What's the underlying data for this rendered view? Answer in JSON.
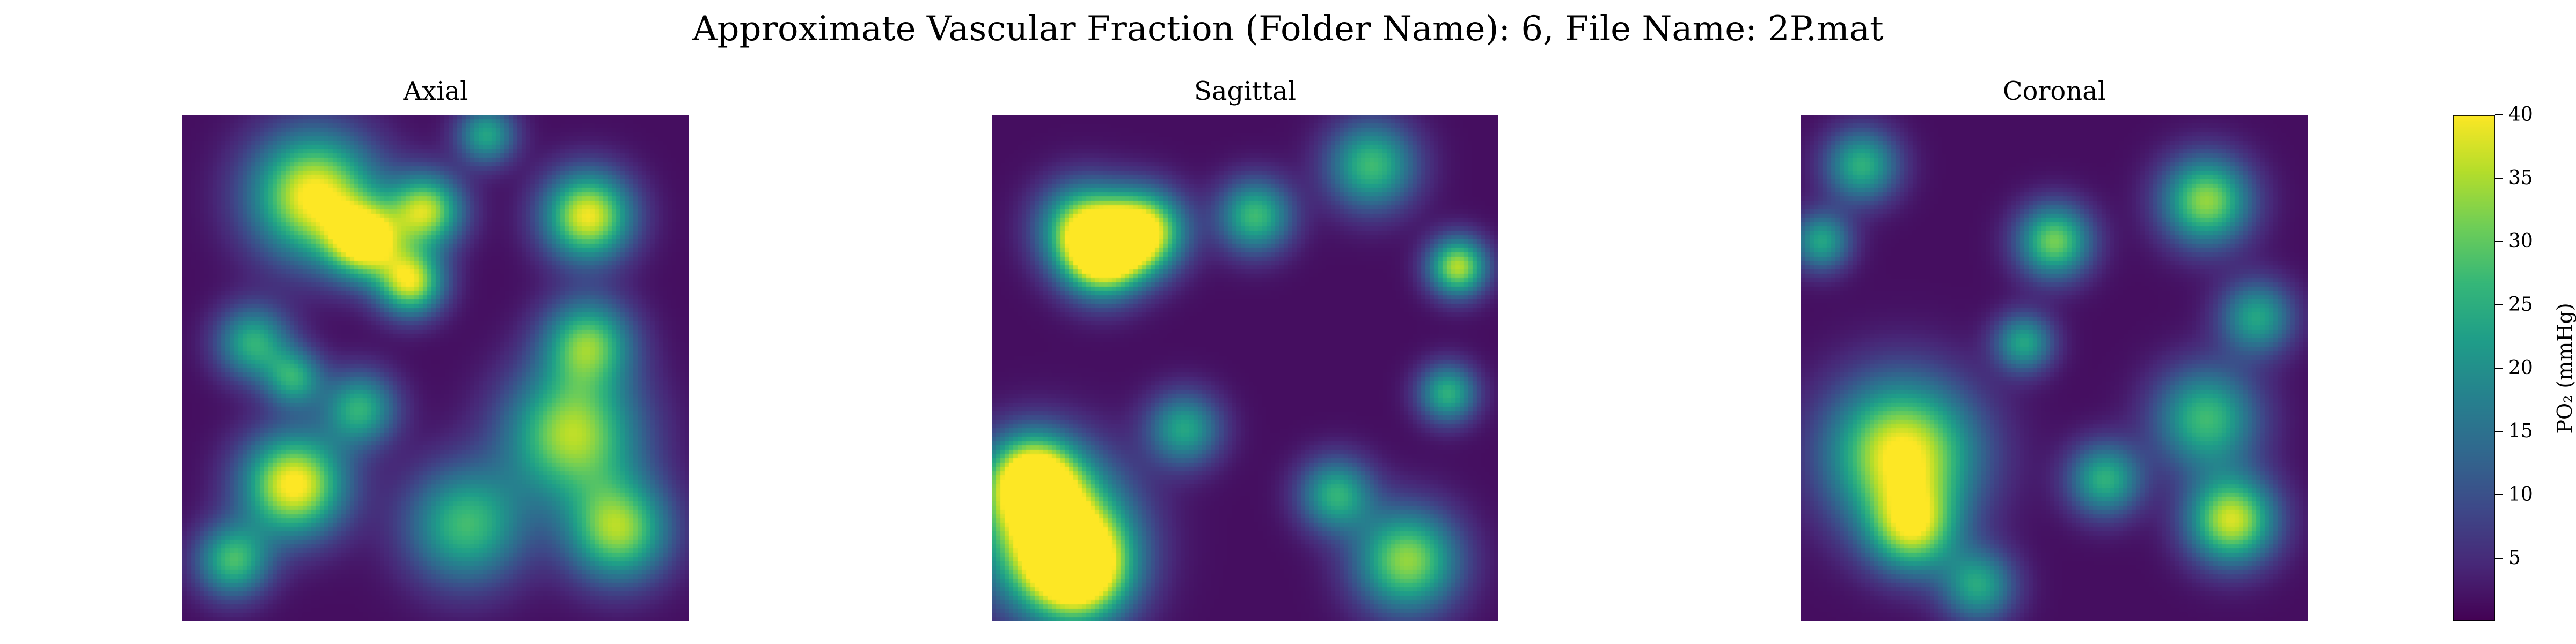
{
  "figure": {
    "title": "Approximate Vascular Fraction (Folder Name): 6, File Name: 2P.mat"
  },
  "chart_data": [
    {
      "type": "heatmap",
      "title": "Axial",
      "xlabel": "",
      "ylabel": "",
      "grid": false,
      "colormap": "viridis",
      "value_range": [
        0,
        40
      ],
      "features": [
        {
          "x": 0.26,
          "y": 0.16,
          "r": 0.085,
          "value": 40
        },
        {
          "x": 0.36,
          "y": 0.25,
          "r": 0.05,
          "value": 38
        },
        {
          "x": 0.45,
          "y": 0.33,
          "r": 0.045,
          "value": 36
        },
        {
          "x": 0.22,
          "y": 0.73,
          "r": 0.07,
          "value": 40
        },
        {
          "x": 0.8,
          "y": 0.2,
          "r": 0.06,
          "value": 38
        },
        {
          "x": 0.48,
          "y": 0.19,
          "r": 0.05,
          "value": 34
        },
        {
          "x": 0.77,
          "y": 0.63,
          "r": 0.09,
          "value": 34
        },
        {
          "x": 0.86,
          "y": 0.82,
          "r": 0.07,
          "value": 32
        },
        {
          "x": 0.8,
          "y": 0.45,
          "r": 0.06,
          "value": 28
        },
        {
          "x": 0.56,
          "y": 0.81,
          "r": 0.08,
          "value": 26
        },
        {
          "x": 0.14,
          "y": 0.45,
          "r": 0.05,
          "value": 24
        },
        {
          "x": 0.35,
          "y": 0.58,
          "r": 0.05,
          "value": 24
        },
        {
          "x": 0.1,
          "y": 0.88,
          "r": 0.05,
          "value": 26
        },
        {
          "x": 0.22,
          "y": 0.52,
          "r": 0.04,
          "value": 22
        },
        {
          "x": 0.6,
          "y": 0.04,
          "r": 0.04,
          "value": 22
        }
      ]
    },
    {
      "type": "heatmap",
      "title": "Sagittal",
      "xlabel": "",
      "ylabel": "",
      "grid": false,
      "colormap": "viridis",
      "value_range": [
        0,
        40
      ],
      "features": [
        {
          "x": 0.12,
          "y": 0.82,
          "r": 0.1,
          "value": 40
        },
        {
          "x": 0.17,
          "y": 0.9,
          "r": 0.07,
          "value": 40
        },
        {
          "x": 0.08,
          "y": 0.72,
          "r": 0.06,
          "value": 38
        },
        {
          "x": 0.22,
          "y": 0.28,
          "r": 0.055,
          "value": 40
        },
        {
          "x": 0.3,
          "y": 0.23,
          "r": 0.055,
          "value": 40
        },
        {
          "x": 0.18,
          "y": 0.22,
          "r": 0.06,
          "value": 30
        },
        {
          "x": 0.82,
          "y": 0.88,
          "r": 0.07,
          "value": 32
        },
        {
          "x": 0.92,
          "y": 0.3,
          "r": 0.04,
          "value": 34
        },
        {
          "x": 0.75,
          "y": 0.1,
          "r": 0.06,
          "value": 26
        },
        {
          "x": 0.52,
          "y": 0.2,
          "r": 0.05,
          "value": 26
        },
        {
          "x": 0.68,
          "y": 0.75,
          "r": 0.05,
          "value": 24
        },
        {
          "x": 0.38,
          "y": 0.62,
          "r": 0.05,
          "value": 22
        },
        {
          "x": 0.9,
          "y": 0.55,
          "r": 0.04,
          "value": 24
        }
      ]
    },
    {
      "type": "heatmap",
      "title": "Coronal",
      "xlabel": "",
      "ylabel": "",
      "grid": false,
      "colormap": "viridis",
      "value_range": [
        0,
        40
      ],
      "features": [
        {
          "x": 0.2,
          "y": 0.67,
          "r": 0.1,
          "value": 40
        },
        {
          "x": 0.22,
          "y": 0.82,
          "r": 0.06,
          "value": 28
        },
        {
          "x": 0.85,
          "y": 0.8,
          "r": 0.06,
          "value": 36
        },
        {
          "x": 0.8,
          "y": 0.17,
          "r": 0.06,
          "value": 32
        },
        {
          "x": 0.5,
          "y": 0.25,
          "r": 0.05,
          "value": 30
        },
        {
          "x": 0.8,
          "y": 0.6,
          "r": 0.07,
          "value": 26
        },
        {
          "x": 0.6,
          "y": 0.72,
          "r": 0.05,
          "value": 24
        },
        {
          "x": 0.12,
          "y": 0.1,
          "r": 0.05,
          "value": 24
        },
        {
          "x": 0.44,
          "y": 0.45,
          "r": 0.04,
          "value": 22
        },
        {
          "x": 0.9,
          "y": 0.4,
          "r": 0.05,
          "value": 22
        },
        {
          "x": 0.04,
          "y": 0.25,
          "r": 0.04,
          "value": 22
        },
        {
          "x": 0.35,
          "y": 0.93,
          "r": 0.05,
          "value": 22
        }
      ]
    }
  ],
  "colorbar": {
    "label": "PO₂ (mmHg)",
    "min": 0,
    "max": 40,
    "ticks": [
      {
        "value": 5,
        "label": "5"
      },
      {
        "value": 10,
        "label": "10"
      },
      {
        "value": 15,
        "label": "15"
      },
      {
        "value": 20,
        "label": "20"
      },
      {
        "value": 25,
        "label": "25"
      },
      {
        "value": 30,
        "label": "30"
      },
      {
        "value": 35,
        "label": "35"
      },
      {
        "value": 40,
        "label": "40"
      }
    ],
    "colors": [
      "#440154",
      "#482878",
      "#3e4989",
      "#31688e",
      "#26828e",
      "#1f9e89",
      "#35b779",
      "#6ece58",
      "#b5de2b",
      "#fde725"
    ]
  }
}
